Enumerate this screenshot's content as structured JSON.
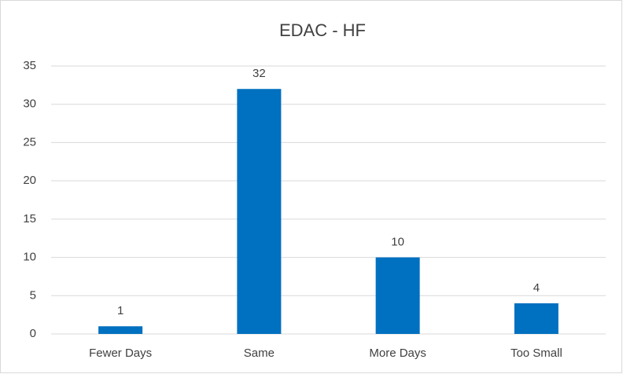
{
  "chart_data": {
    "type": "bar",
    "title": "EDAC - HF",
    "categories": [
      "Fewer Days",
      "Same",
      "More Days",
      "Too Small"
    ],
    "values": [
      1,
      32,
      10,
      4
    ],
    "color": "#0070c0",
    "ylim": [
      0,
      35
    ],
    "yticks": [
      0,
      5,
      10,
      15,
      20,
      25,
      30,
      35
    ],
    "grid": true,
    "data_labels": true
  }
}
